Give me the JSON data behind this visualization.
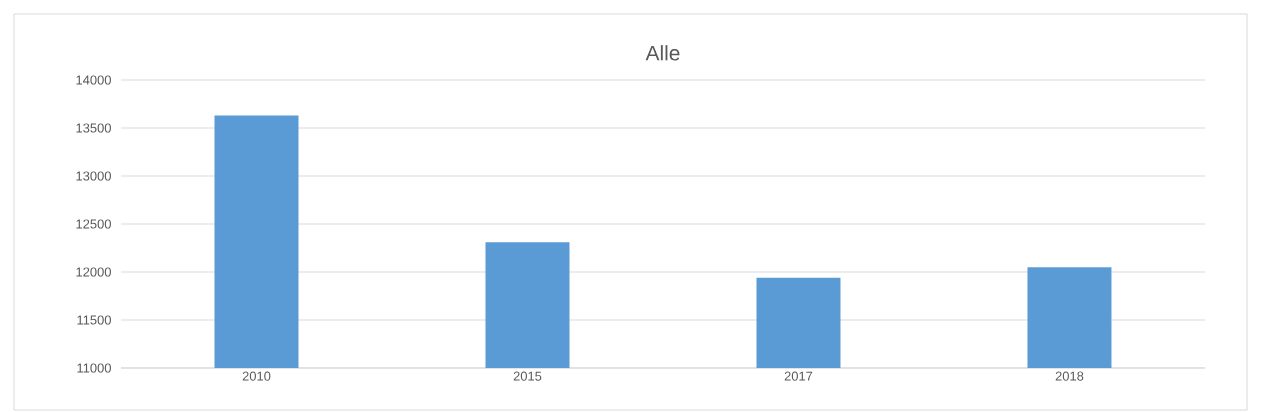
{
  "chart_data": {
    "type": "bar",
    "title": "Alle",
    "categories": [
      "2010",
      "2015",
      "2017",
      "2018"
    ],
    "values": [
      13630,
      12310,
      11940,
      12050
    ],
    "color": "#5b9bd5",
    "ylim": [
      11000,
      14000
    ],
    "yticks": [
      11000,
      11500,
      12000,
      12500,
      13000,
      13500,
      14000
    ],
    "grid": "y"
  }
}
